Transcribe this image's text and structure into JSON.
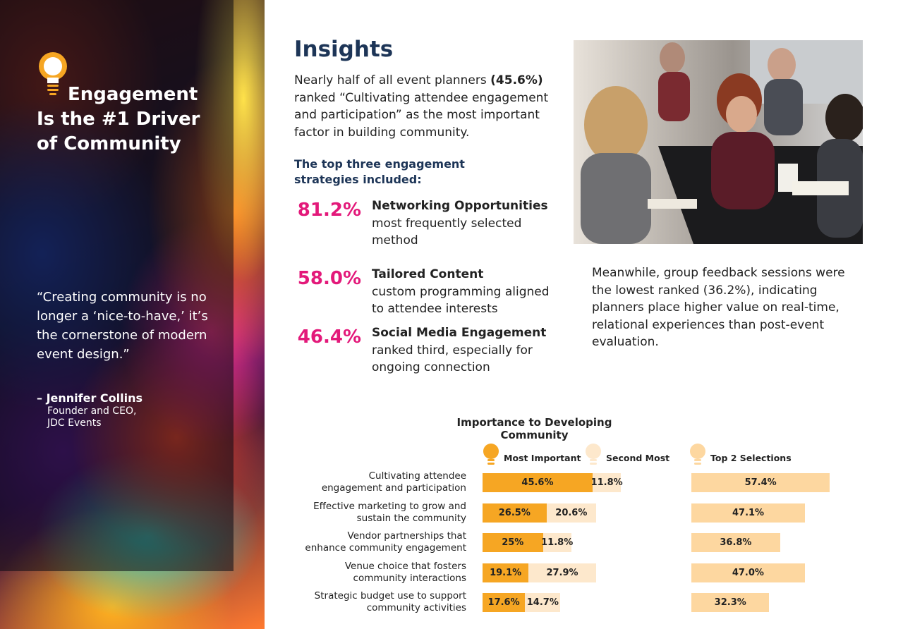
{
  "sidebar": {
    "heading_line1": "Engagement",
    "heading_line2": "Is the #1 Driver",
    "heading_line3": "of Community",
    "quote": "“Creating community is no longer a ‘nice-to-have,’ it’s the cornerstone of modern event design.”",
    "author_name": "– Jennifer Collins",
    "author_role": "Founder and CEO,",
    "author_company": "JDC Events"
  },
  "main": {
    "title": "Insights",
    "intro_before": "Nearly half of all event planners ",
    "intro_bold": "(45.6%)",
    "intro_after": " ranked “Cultivating attendee engagement and participation” as the most important factor in building community.",
    "strategies_heading": "The top three engagement strategies included:",
    "strategies": [
      {
        "pct": "81.2%",
        "title": "Networking Opportunities",
        "desc": "most frequently selected method"
      },
      {
        "pct": "58.0%",
        "title": "Tailored Content",
        "desc": "custom programming aligned to attendee interests"
      },
      {
        "pct": "46.4%",
        "title": "Social Media Engagement",
        "desc": "ranked third, especially for ongoing connection"
      }
    ],
    "meanwhile": "Meanwhile, group feedback sessions were the lowest ranked (36.2%), indicating planners place higher value on real-time, relational experiences than post-event evaluation."
  },
  "colors": {
    "navy": "#1d3557",
    "pink": "#e3197a",
    "most_important": "#f6a623",
    "second_most": "#fde8cc",
    "top2": "#fdd7a0"
  },
  "chart_data": {
    "type": "bar",
    "title": "Importance to Developing Community",
    "legend": [
      "Most Important",
      "Second Most",
      "Top 2 Selections"
    ],
    "categories": [
      "Cultivating attendee engagement and participation",
      "Effective marketing to grow and sustain the community",
      "Vendor partnerships that enhance community engagement",
      "Venue choice that fosters community interactions",
      "Strategic budget use to support community activities"
    ],
    "category_lines": [
      [
        "Cultivating attendee",
        "engagement and participation"
      ],
      [
        "Effective marketing to grow and",
        "sustain the community"
      ],
      [
        "Vendor partnerships that",
        "enhance community engagement"
      ],
      [
        "Venue choice that fosters",
        "community interactions"
      ],
      [
        "Strategic budget use to support",
        "community activities"
      ]
    ],
    "series": [
      {
        "name": "Most Important",
        "values": [
          45.6,
          26.5,
          25,
          19.1,
          17.6
        ],
        "labels": [
          "45.6%",
          "26.5%",
          "25%",
          "19.1%",
          "17.6%"
        ]
      },
      {
        "name": "Second Most",
        "values": [
          11.8,
          20.6,
          11.8,
          27.9,
          14.7
        ],
        "labels": [
          "11.8%",
          "20.6%",
          "11.8%",
          "27.9%",
          "14.7%"
        ]
      },
      {
        "name": "Top 2 Selections",
        "values": [
          57.4,
          47.1,
          36.8,
          47.0,
          32.3
        ],
        "labels": [
          "57.4%",
          "47.1%",
          "36.8%",
          "47.0%",
          "32.3%"
        ]
      }
    ],
    "xlim": [
      0,
      100
    ]
  }
}
